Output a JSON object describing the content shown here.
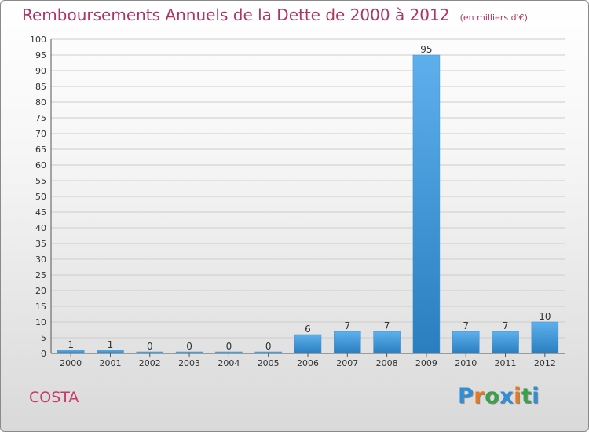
{
  "header": {
    "title": "Remboursements Annuels de la Dette de 2000 à 2012",
    "unit": "(en milliers d'€)"
  },
  "commune": "COSTA",
  "logo": {
    "text": "Proxiti",
    "letter_colors": [
      "#2f8fd6",
      "#e8791f",
      "#3aa04a",
      "#2f8fd6",
      "#e8791f",
      "#3aa04a",
      "#2f8fd6"
    ]
  },
  "colors": {
    "title": "#b03462",
    "bar_light": "#5db0ec",
    "bar_dark": "#2a7ebf",
    "grid": "#cccccc",
    "axis": "#555555"
  },
  "chart_data": {
    "type": "bar",
    "title": "Remboursements Annuels de la Dette de 2000 à 2012",
    "subtitle": "(en milliers d'€)",
    "xlabel": "",
    "ylabel": "",
    "categories": [
      "2000",
      "2001",
      "2002",
      "2003",
      "2004",
      "2005",
      "2006",
      "2007",
      "2008",
      "2009",
      "2010",
      "2011",
      "2012"
    ],
    "values": [
      1,
      1,
      0,
      0,
      0,
      0,
      6,
      7,
      7,
      95,
      7,
      7,
      10
    ],
    "ylim": [
      0,
      100
    ],
    "ytick_step": 5,
    "grid": true,
    "data_labels": true
  }
}
